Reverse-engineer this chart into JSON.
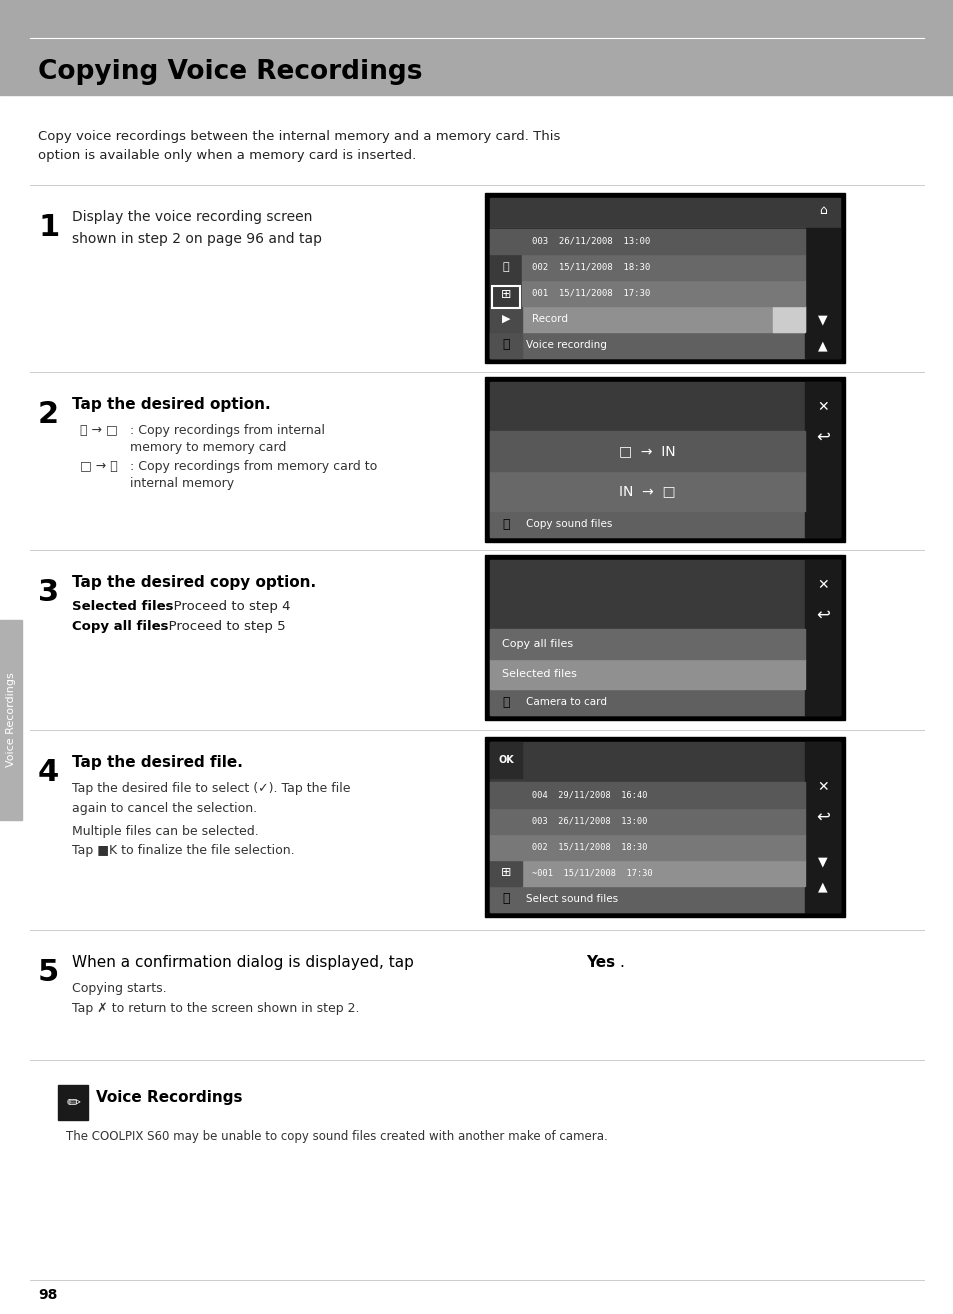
{
  "title": "Copying Voice Recordings",
  "title_bg": "#a0a0a0",
  "page_bg": "#ffffff",
  "intro_text": "Copy voice recordings between the internal memory and a memory card. This\noption is available only when a memory card is inserted.",
  "step1_num": "1",
  "step1_text": "Display the voice recording screen\nshown in step 2 on page 96 and tap ⓒ.",
  "step2_num": "2",
  "step2_text": "Tap the desired option.",
  "step2_sub1": "ⓒ → □ : Copy recordings from internal\n          memory to memory card",
  "step2_sub2": "□ → ⓒ : Copy recordings from memory card to\n          internal memory",
  "step3_num": "3",
  "step3_text": "Tap the desired copy option.",
  "step3_sub1": "Selected files: Proceed to step 4",
  "step3_sub2": "Copy all files: Proceed to step 5",
  "step4_num": "4",
  "step4_text": "Tap the desired file.",
  "step4_sub1": "Tap the desired file to select (✓). Tap the file\nagain to cancel the selection.",
  "step4_sub2": "Multiple files can be selected.",
  "step4_sub3": "Tap ■K to finalize the file selection.",
  "step5_num": "5",
  "step5_text": "When a confirmation dialog is displayed, tap Yes.",
  "step5_sub1": "Copying starts.",
  "step5_sub2": "Tap ✗ to return to the screen shown in step 2.",
  "note_title": "Voice Recordings",
  "note_text": "The COOLPIX S60 may be unable to copy sound files created with another make of camera.",
  "page_num": "98",
  "sidebar_text": "Voice Recordings",
  "screen_bg": "#404040",
  "screen_header_bg": "#606060",
  "screen_row_bg": "#808080",
  "screen_row_alt": "#707070",
  "screen_selected": "#909090"
}
